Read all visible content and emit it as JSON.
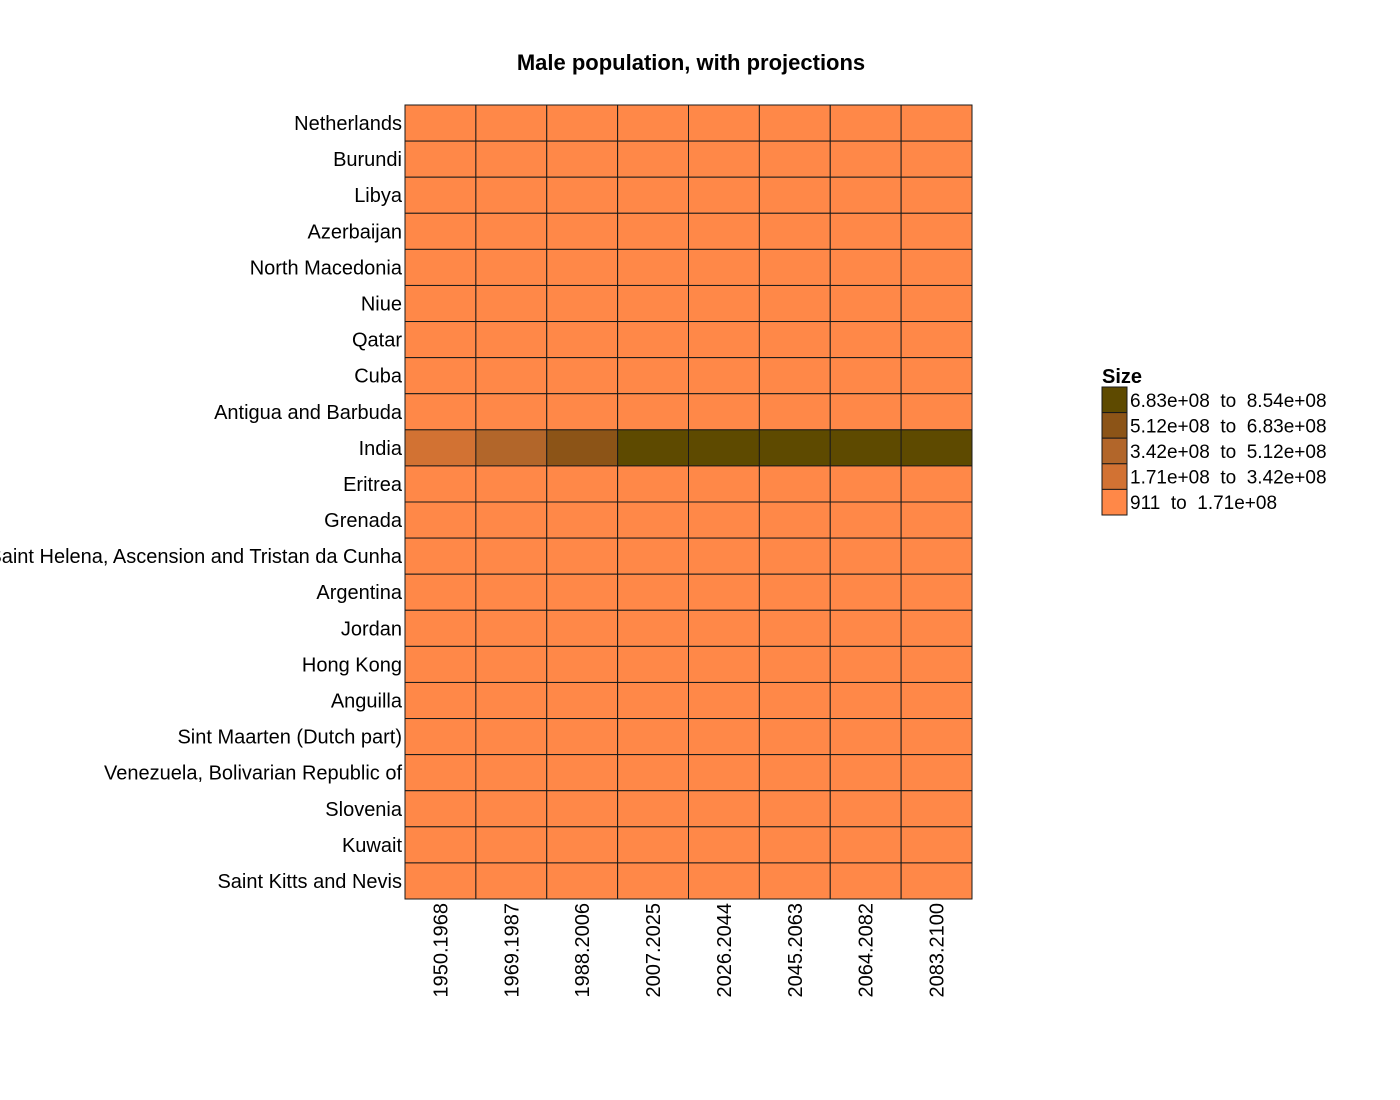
{
  "chart_data": {
    "type": "heatmap",
    "title": "Male population, with projections",
    "rows": [
      "Netherlands",
      "Burundi",
      "Libya",
      "Azerbaijan",
      "North Macedonia",
      "Niue",
      "Qatar",
      "Cuba",
      "Antigua and Barbuda",
      "India",
      "Eritrea",
      "Grenada",
      "Saint Helena, Ascension and Tristan da Cunha",
      "Argentina",
      "Jordan",
      "Hong Kong",
      "Anguilla",
      "Sint Maarten (Dutch part)",
      "Venezuela, Bolivarian Republic of",
      "Slovenia",
      "Kuwait",
      "Saint Kitts and Nevis"
    ],
    "columns": [
      "1950.1968",
      "1969.1987",
      "1988.2006",
      "2007.2025",
      "2026.2044",
      "2045.2063",
      "2064.2082",
      "2083.2100"
    ],
    "bins": [
      {
        "label": "6.83e+08  to  8.54e+08",
        "color": "#5e4a00"
      },
      {
        "label": "5.12e+08  to  6.83e+08",
        "color": "#8c5417"
      },
      {
        "label": "3.42e+08  to  5.12e+08",
        "color": "#b2662a"
      },
      {
        "label": "1.71e+08  to  3.42e+08",
        "color": "#d27233"
      },
      {
        "label": "911  to  1.71e+08",
        "color": "#ff8848"
      }
    ],
    "cell_bins": [
      [
        4,
        4,
        4,
        4,
        4,
        4,
        4,
        4
      ],
      [
        4,
        4,
        4,
        4,
        4,
        4,
        4,
        4
      ],
      [
        4,
        4,
        4,
        4,
        4,
        4,
        4,
        4
      ],
      [
        4,
        4,
        4,
        4,
        4,
        4,
        4,
        4
      ],
      [
        4,
        4,
        4,
        4,
        4,
        4,
        4,
        4
      ],
      [
        4,
        4,
        4,
        4,
        4,
        4,
        4,
        4
      ],
      [
        4,
        4,
        4,
        4,
        4,
        4,
        4,
        4
      ],
      [
        4,
        4,
        4,
        4,
        4,
        4,
        4,
        4
      ],
      [
        4,
        4,
        4,
        4,
        4,
        4,
        4,
        4
      ],
      [
        3,
        2,
        1,
        0,
        0,
        0,
        0,
        0
      ],
      [
        4,
        4,
        4,
        4,
        4,
        4,
        4,
        4
      ],
      [
        4,
        4,
        4,
        4,
        4,
        4,
        4,
        4
      ],
      [
        4,
        4,
        4,
        4,
        4,
        4,
        4,
        4
      ],
      [
        4,
        4,
        4,
        4,
        4,
        4,
        4,
        4
      ],
      [
        4,
        4,
        4,
        4,
        4,
        4,
        4,
        4
      ],
      [
        4,
        4,
        4,
        4,
        4,
        4,
        4,
        4
      ],
      [
        4,
        4,
        4,
        4,
        4,
        4,
        4,
        4
      ],
      [
        4,
        4,
        4,
        4,
        4,
        4,
        4,
        4
      ],
      [
        4,
        4,
        4,
        4,
        4,
        4,
        4,
        4
      ],
      [
        4,
        4,
        4,
        4,
        4,
        4,
        4,
        4
      ],
      [
        4,
        4,
        4,
        4,
        4,
        4,
        4,
        4
      ],
      [
        4,
        4,
        4,
        4,
        4,
        4,
        4,
        4
      ]
    ],
    "legend": {
      "title": "Size",
      "position": "right"
    },
    "grid": false
  }
}
